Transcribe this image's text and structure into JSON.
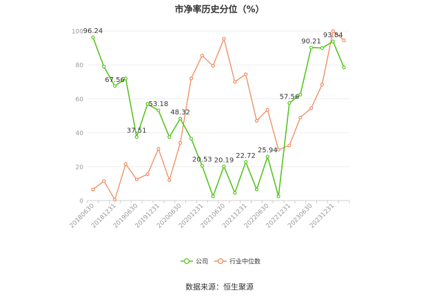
{
  "title": "市净率历史分位（%）",
  "source": "数据来源：恒生聚源",
  "colors": {
    "company": "#52c41a",
    "industry": "#f0875a",
    "axis": "#999999",
    "grid": "#eeeeee",
    "text": "#333333"
  },
  "chart_data": {
    "type": "line",
    "title": "市净率历史分位（%）",
    "ylim": [
      0,
      100
    ],
    "yticks": [
      0,
      20,
      40,
      60,
      80,
      100
    ],
    "grid": true,
    "legend_position": "bottom",
    "x": [
      "20180630",
      "20180930",
      "20181231",
      "20190331",
      "20190630",
      "20190930",
      "20191231",
      "20200331",
      "20200630",
      "20200930",
      "20201231",
      "20210331",
      "20210630",
      "20210930",
      "20211231",
      "20220331",
      "20220630",
      "20220930",
      "20221231",
      "20230331",
      "20230630",
      "20230930",
      "20231231",
      "20240331"
    ],
    "xtick_labels": [
      "20180630",
      "20181231",
      "20190630",
      "20191231",
      "20200630",
      "20201231",
      "20210630",
      "20211231",
      "20220630",
      "20221231",
      "20230630",
      "20231231"
    ],
    "series": [
      {
        "name": "公司",
        "values": [
          96.24,
          79,
          67.56,
          72,
          37.51,
          57,
          53.18,
          37.5,
          48.32,
          36.5,
          20.53,
          2.5,
          20.19,
          4.5,
          22.72,
          6.5,
          25.94,
          2.5,
          57.56,
          62.5,
          90.21,
          90,
          93.84,
          78.5
        ],
        "labels": [
          96.24,
          null,
          67.56,
          null,
          37.51,
          null,
          53.18,
          null,
          48.32,
          null,
          20.53,
          null,
          20.19,
          null,
          22.72,
          null,
          25.94,
          null,
          57.56,
          null,
          90.21,
          null,
          93.84,
          null
        ]
      },
      {
        "name": "行业中位数",
        "values": [
          6.5,
          11.5,
          0.5,
          21.5,
          12.5,
          15.5,
          30.5,
          12,
          34,
          72,
          85.5,
          79.5,
          95.5,
          70,
          74.5,
          47,
          53.5,
          30,
          32.5,
          49,
          54.5,
          68.5,
          100,
          94.5
        ]
      }
    ]
  }
}
